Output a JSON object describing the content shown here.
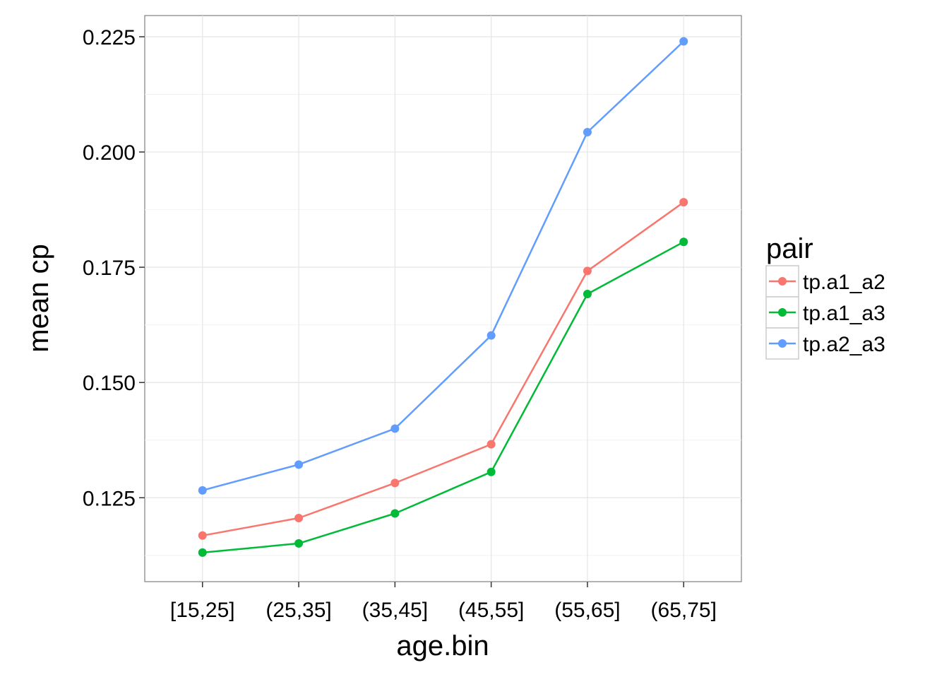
{
  "chart_data": {
    "type": "line",
    "xlabel": "age.bin",
    "ylabel": "mean cp",
    "categories": [
      "[15,25]",
      "(25,35]",
      "(35,45]",
      "(45,55]",
      "(55,65]",
      "(65,75]"
    ],
    "y_ticks": [
      0.125,
      0.15,
      0.175,
      0.2,
      0.225
    ],
    "y_tick_labels": [
      "0.125",
      "0.150",
      "0.175",
      "0.200",
      "0.225"
    ],
    "ylim": [
      0.1068,
      0.2296
    ],
    "grid": true,
    "legend": {
      "title": "pair",
      "placement": "right"
    },
    "series": [
      {
        "name": "tp.a1_a2",
        "color": "#F8766D",
        "values": [
          0.1168,
          0.1206,
          0.1282,
          0.1366,
          0.1742,
          0.1891
        ]
      },
      {
        "name": "tp.a1_a3",
        "color": "#00BA38",
        "values": [
          0.1131,
          0.1151,
          0.1216,
          0.1306,
          0.1692,
          0.1805
        ]
      },
      {
        "name": "tp.a2_a3",
        "color": "#619CFF",
        "values": [
          0.1266,
          0.1322,
          0.14,
          0.1602,
          0.2043,
          0.224
        ]
      }
    ]
  }
}
